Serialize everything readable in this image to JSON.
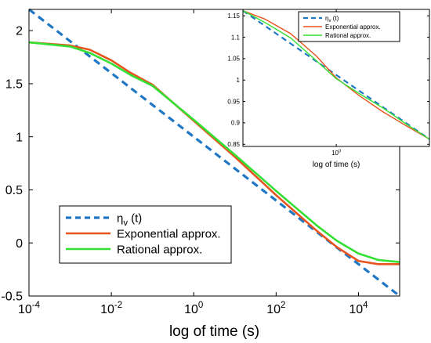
{
  "chart_data": [
    {
      "type": "line",
      "x_scale": "log",
      "xlim": [
        0.0001,
        100000
      ],
      "ylim": [
        -0.5,
        2.2
      ],
      "xlabel": "log of time (s)",
      "ylabel": "",
      "x_ticks": [
        0.0001,
        0.01,
        1,
        100,
        10000
      ],
      "x_tick_labels": [
        {
          "base": "10",
          "exp": "-4"
        },
        {
          "base": "10",
          "exp": "-2"
        },
        {
          "base": "10",
          "exp": "0"
        },
        {
          "base": "10",
          "exp": "2"
        },
        {
          "base": "10",
          "exp": "4"
        }
      ],
      "y_ticks": [
        -0.5,
        0,
        0.5,
        1,
        1.5,
        2
      ],
      "y_tick_labels": [
        "-0.5",
        "0",
        "0.5",
        "1",
        "1.5",
        "2"
      ],
      "grid": false,
      "legend_position": "bottom-left",
      "series": [
        {
          "name": "η_v (t)",
          "legend": {
            "main": "η",
            "sub": "v",
            "suffix": " (t)"
          },
          "color": "#1f77c4",
          "dash": true,
          "x": [
            0.0001,
            100000
          ],
          "y": [
            2.2,
            -0.5
          ]
        },
        {
          "name": "Exponential approx.",
          "color": "#e8541e",
          "dash": false,
          "x": [
            0.0001,
            0.001,
            0.003,
            0.01,
            0.03,
            0.1,
            1,
            10,
            100,
            1000,
            3000,
            10000,
            30000,
            100000
          ],
          "y": [
            1.89,
            1.86,
            1.82,
            1.72,
            1.6,
            1.49,
            1.15,
            0.81,
            0.45,
            0.11,
            -0.04,
            -0.17,
            -0.2,
            -0.2
          ]
        },
        {
          "name": "Rational approx.",
          "color": "#33e033",
          "dash": false,
          "x": [
            0.0001,
            0.001,
            0.003,
            0.01,
            0.03,
            0.1,
            1,
            10,
            100,
            1000,
            3000,
            10000,
            30000,
            100000
          ],
          "y": [
            1.89,
            1.85,
            1.79,
            1.69,
            1.58,
            1.48,
            1.16,
            0.83,
            0.49,
            0.16,
            0.02,
            -0.1,
            -0.16,
            -0.18
          ]
        }
      ]
    },
    {
      "type": "line",
      "inset": true,
      "x_scale": "log",
      "xlim": [
        0.35,
        2.85
      ],
      "ylim": [
        0.845,
        1.165
      ],
      "xlabel": "log of time (s)",
      "ylabel": "",
      "x_ticks": [
        1
      ],
      "x_tick_labels": [
        {
          "base": "10",
          "exp": "0"
        }
      ],
      "y_ticks": [
        0.85,
        0.9,
        0.95,
        1,
        1.05,
        1.1,
        1.15
      ],
      "y_tick_labels": [
        "0.85",
        "0.9",
        "0.95",
        "1",
        "1.05",
        "1.1",
        "1.15"
      ],
      "grid": false,
      "legend_position": "top-right",
      "series": [
        {
          "name": "η_v (t)",
          "legend": {
            "main": "η",
            "sub": "v",
            "suffix": " (t)"
          },
          "color": "#1f77c4",
          "dash": true,
          "x": [
            0.35,
            2.85
          ],
          "y": [
            1.162,
            0.862
          ]
        },
        {
          "name": "Exponential approx.",
          "color": "#e8541e",
          "dash": false,
          "x": [
            0.35,
            0.45,
            0.6,
            0.8,
            1.0,
            1.3,
            1.7,
            2.2,
            2.85
          ],
          "y": [
            1.162,
            1.142,
            1.108,
            1.056,
            1.005,
            0.963,
            0.925,
            0.893,
            0.862
          ]
        },
        {
          "name": "Rational approx.",
          "color": "#33e033",
          "dash": false,
          "x": [
            0.35,
            0.45,
            0.6,
            0.8,
            1.0,
            1.3,
            1.7,
            2.2,
            2.85
          ],
          "y": [
            1.162,
            1.134,
            1.098,
            1.045,
            1.003,
            0.968,
            0.934,
            0.897,
            0.862
          ]
        }
      ]
    }
  ]
}
